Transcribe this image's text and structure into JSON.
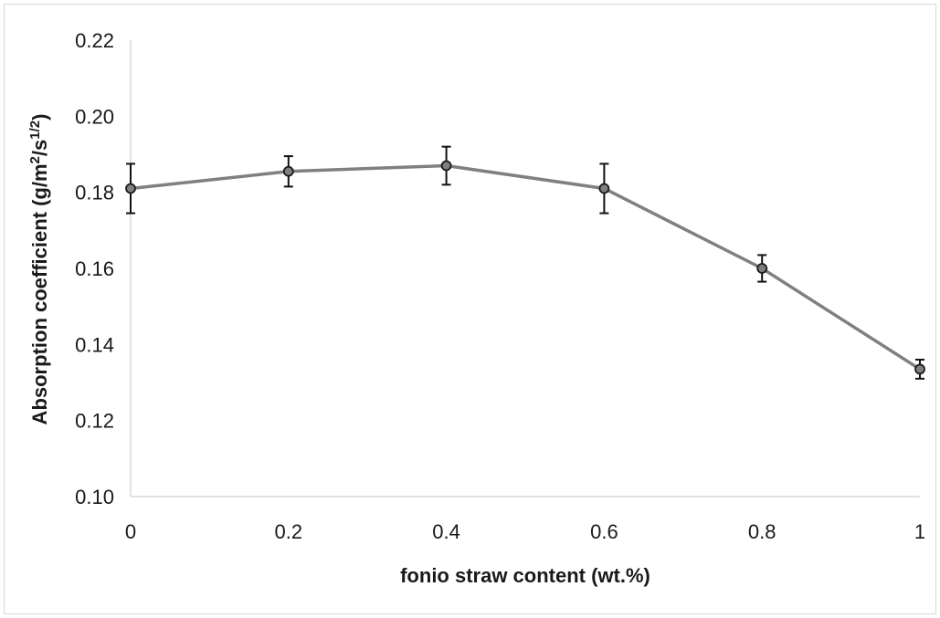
{
  "chart_data": {
    "type": "line",
    "x": [
      0,
      0.2,
      0.4,
      0.6,
      0.8,
      1
    ],
    "x_tick_labels": [
      "0",
      "0.2",
      "0.4",
      "0.6",
      "0.8",
      "1"
    ],
    "series": [
      {
        "values": [
          0.181,
          0.1855,
          0.187,
          0.181,
          0.16,
          0.1335
        ],
        "error": [
          0.0065,
          0.004,
          0.005,
          0.0065,
          0.0035,
          0.0025
        ],
        "color": "#808080",
        "marker_fill": "#7f7f7f"
      }
    ],
    "xlabel": "fonio straw content (wt.%)",
    "ylabel_main": "Absorption coefficient (g/m",
    "ylabel_sup1": "2",
    "ylabel_mid": "/s",
    "ylabel_sup2": "1/2",
    "ylabel_end": ")",
    "xlim": [
      0,
      1
    ],
    "ylim": [
      0.1,
      0.22
    ],
    "y_ticks": [
      0.1,
      0.12,
      0.14,
      0.16,
      0.18,
      0.2,
      0.22
    ],
    "y_tick_labels": [
      "0.10",
      "0.12",
      "0.14",
      "0.16",
      "0.18",
      "0.20",
      "0.22"
    ],
    "grid": false,
    "legend": "none"
  }
}
